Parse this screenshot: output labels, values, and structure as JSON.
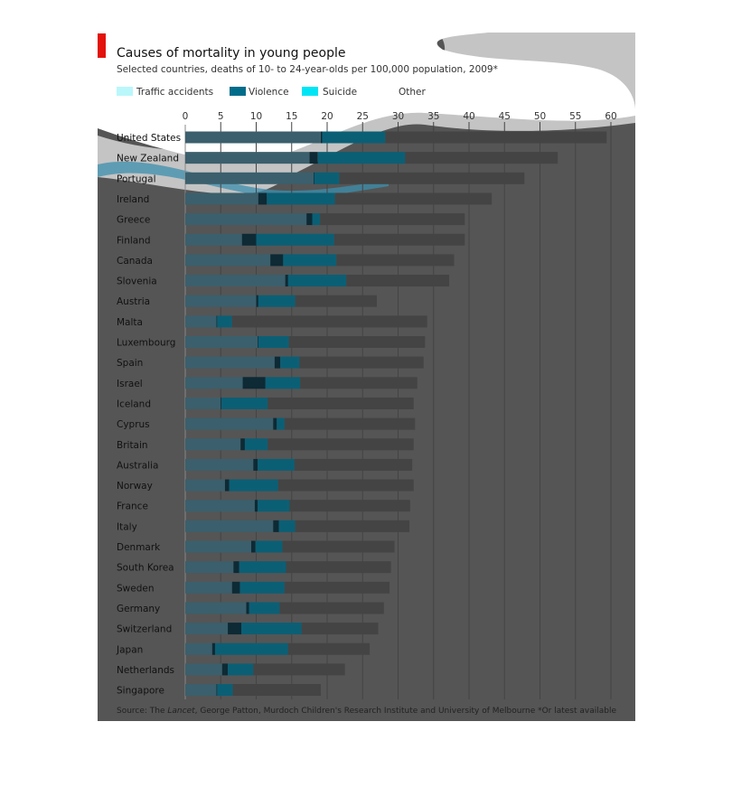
{
  "chart_data": {
    "type": "bar",
    "orientation": "horizontal",
    "stacked": true,
    "title": "Causes of mortality in young people",
    "subtitle": "Selected countries, deaths of 10- to 24-year-olds per 100,000 population, 2009*",
    "xlim": [
      0,
      60
    ],
    "x_ticks": [
      "0",
      "5",
      "10",
      "15",
      "20",
      "25",
      "30",
      "35",
      "40",
      "45",
      "50",
      "55",
      "60"
    ],
    "grid": "vertical",
    "legend_position": "top",
    "categories": [
      "United States",
      "New Zealand",
      "Portugal",
      "Ireland",
      "Greece",
      "Finland",
      "Canada",
      "Slovenia",
      "Austria",
      "Malta",
      "Luxembourg",
      "Spain",
      "Israel",
      "Iceland",
      "Cyprus",
      "Britain",
      "Australia",
      "Norway",
      "France",
      "Italy",
      "Denmark",
      "South Korea",
      "Sweden",
      "Germany",
      "Switzerland",
      "Japan",
      "Netherlands",
      "Singapore"
    ],
    "series": [
      {
        "name": "Traffic accidents",
        "color": "#3b5f6c",
        "values": [
          19.1,
          17.5,
          18.1,
          10.3,
          17.1,
          8.0,
          12.0,
          14.1,
          10.0,
          4.4,
          10.2,
          12.6,
          8.1,
          5.0,
          12.4,
          7.8,
          9.6,
          5.6,
          9.8,
          12.4,
          9.3,
          6.8,
          6.6,
          8.6,
          6.0,
          3.8,
          5.2,
          4.4
        ]
      },
      {
        "name": "Violence",
        "color": "#0d2a35",
        "values": [
          0.2,
          1.2,
          0.1,
          1.2,
          0.8,
          2.0,
          1.8,
          0.4,
          0.3,
          0.1,
          0.1,
          0.8,
          3.2,
          0.1,
          0.5,
          0.6,
          0.6,
          0.6,
          0.4,
          0.8,
          0.6,
          0.8,
          1.1,
          0.4,
          1.9,
          0.4,
          0.8,
          0.1
        ]
      },
      {
        "name": "Suicide",
        "color": "#0b5f75",
        "values": [
          8.9,
          12.3,
          3.5,
          9.6,
          1.1,
          11.0,
          7.5,
          8.2,
          5.2,
          2.1,
          4.3,
          2.7,
          4.9,
          6.5,
          1.1,
          3.2,
          5.2,
          6.9,
          4.5,
          2.3,
          3.8,
          6.6,
          6.3,
          4.3,
          8.5,
          10.3,
          3.6,
          2.2
        ]
      },
      {
        "name": "Other",
        "color": "#444444",
        "values": [
          31.2,
          21.5,
          26.1,
          22.1,
          20.4,
          18.4,
          16.6,
          14.5,
          11.5,
          27.5,
          19.2,
          17.5,
          16.5,
          20.6,
          18.4,
          20.6,
          16.6,
          19.1,
          17.0,
          16.1,
          15.8,
          14.8,
          14.8,
          14.7,
          10.8,
          11.5,
          12.9,
          12.4
        ]
      }
    ],
    "source_prefix": "Source: The ",
    "source_italic": "Lancet",
    "source_suffix": ", George Patton, Murdoch Children's Research Institute and University of Melbourne",
    "footnote": "*Or latest available",
    "colors": {
      "accent": "#e3120b",
      "dark_panel": "#555555",
      "light_panel": "#c4c4c4",
      "grid": "#444444"
    }
  }
}
